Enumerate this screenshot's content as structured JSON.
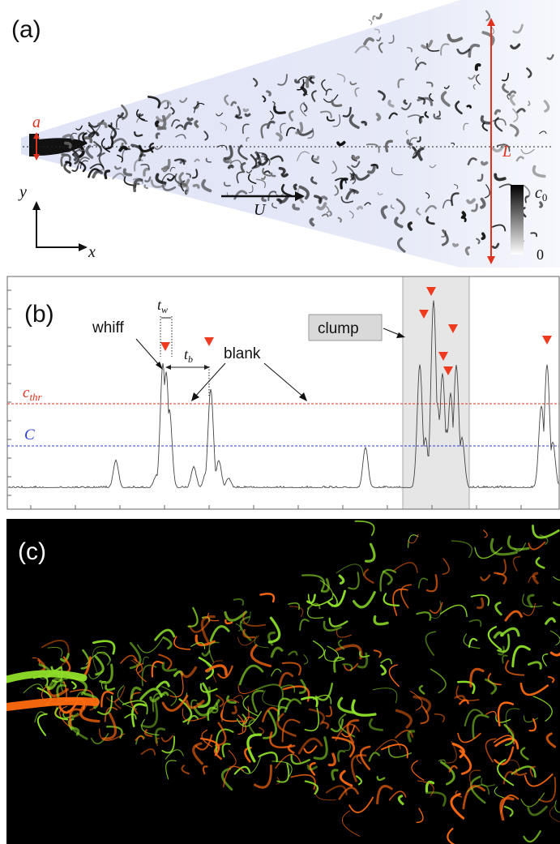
{
  "panel_a": {
    "label": "(a)",
    "symbol_a": "a",
    "symbol_L": "L",
    "symbol_U": "U",
    "axis_y": "y",
    "axis_x": "x",
    "colorbar_max": "c",
    "colorbar_max_sub": "0",
    "colorbar_min": "0",
    "colors": {
      "cone": "#dfe3f6",
      "plume": "#111111",
      "arrow_red": "#e0301e"
    }
  },
  "panel_b": {
    "label": "(b)",
    "whiff_label": "whiff",
    "blank_label": "blank",
    "clump_label": "clump",
    "tw_label": "t",
    "tw_sub": "w",
    "tb_label": "t",
    "tb_sub": "b",
    "cthr_label": "c",
    "cthr_sub": "thr",
    "C_label": "C",
    "colors": {
      "threshold": "#e0301e",
      "mean": "#2b3fd6",
      "trace": "#444444",
      "marker": "#ee3a1e",
      "clump_shade": "#e6e6e6"
    }
  },
  "panel_c": {
    "label": "(c)",
    "colors": {
      "background": "#000000",
      "green": "#8fe02a",
      "orange": "#ff6a10"
    }
  }
}
